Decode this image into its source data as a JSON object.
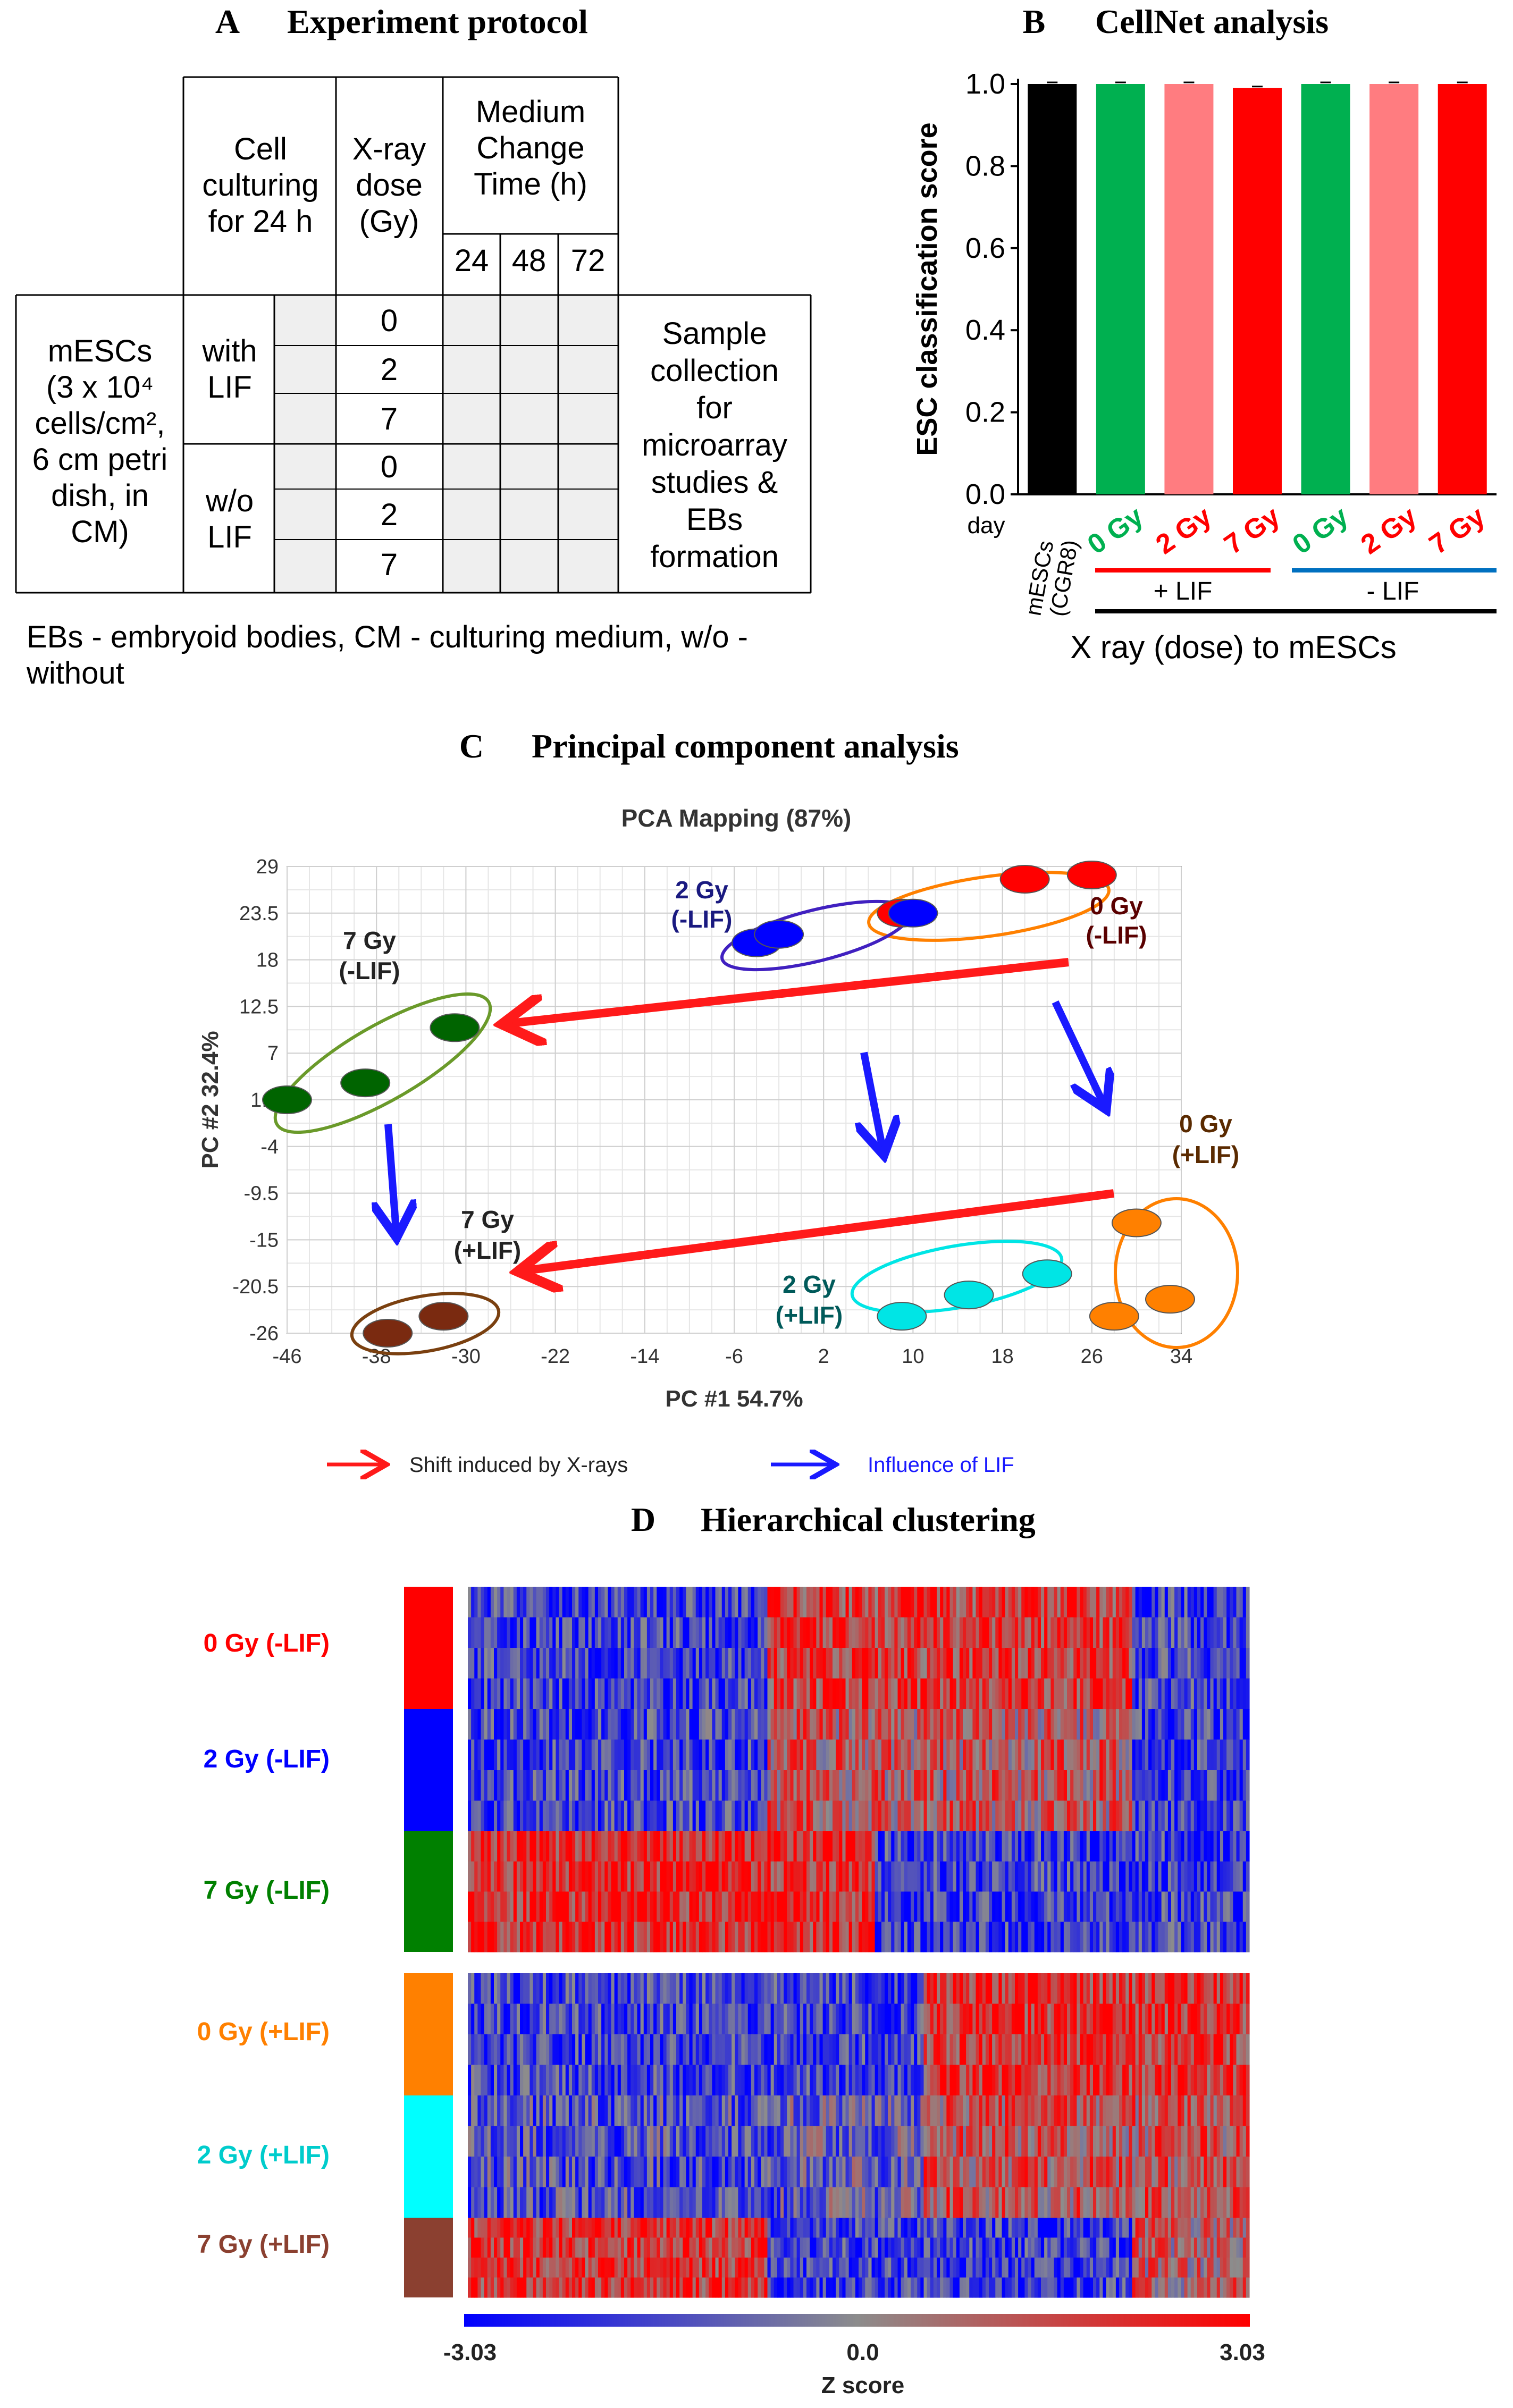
{
  "panel_a": {
    "letter": "A",
    "title": "Experiment protocol",
    "col_culture": [
      "Cell",
      "culturing",
      "for 24 h"
    ],
    "col_dose": [
      "X-ray",
      "dose",
      "(Gy)"
    ],
    "col_medium": [
      "Medium",
      "Change",
      "Time (h)"
    ],
    "times": [
      "24",
      "48",
      "72"
    ],
    "row_label": [
      "mESCs",
      "(3 x 10⁴",
      "cells/cm²,",
      "6 cm petri",
      "dish, in",
      "CM)"
    ],
    "with_lif": [
      "with",
      "LIF"
    ],
    "wo_lif": [
      "w/o",
      "LIF"
    ],
    "doses": [
      "0",
      "2",
      "7",
      "0",
      "2",
      "7"
    ],
    "sample_collection": [
      "Sample",
      "collection",
      "for",
      "microarray",
      "studies &",
      "EBs",
      "formation"
    ],
    "footnote": [
      "EBs - embryoid bodies, CM - culturing medium, w/o -",
      "without"
    ]
  },
  "panel_b": {
    "letter": "B",
    "title": "CellNet analysis",
    "day_label": "day",
    "mesc_label": [
      "mESCs",
      "(CGR8)"
    ],
    "group_plus": "+ LIF",
    "group_minus": "- LIF",
    "xlabel": "X ray (dose) to mESCs",
    "colors": {
      "black": "#000000",
      "green": "#00b050",
      "pink": "#ff7c80",
      "red": "#ff0000",
      "blue_line": "#0070c0"
    }
  },
  "panel_c": {
    "letter": "C",
    "title": "Principal component analysis",
    "plot_title": "PCA Mapping (87%)",
    "labels": {
      "g2m": [
        "2 Gy",
        "(-LIF)"
      ],
      "g0m": [
        "0 Gy",
        "(-LIF)"
      ],
      "g7m": [
        "7 Gy",
        "(-LIF)"
      ],
      "g0p": [
        "0 Gy",
        "(+LIF)"
      ],
      "g7p": [
        "7 Gy",
        "(+LIF)"
      ],
      "g2p": [
        "2 Gy",
        "(+LIF)"
      ]
    },
    "legend_red": "Shift induced by X-rays",
    "legend_blue": "Influence of LIF"
  },
  "panel_d": {
    "letter": "D",
    "title": "Hierarchical clustering",
    "rows": [
      {
        "label": "0 Gy (-LIF)",
        "color": "#ff0000"
      },
      {
        "label": "2 Gy (-LIF)",
        "color": "#0000ff"
      },
      {
        "label": "7 Gy (-LIF)",
        "color": "#008000"
      },
      {
        "label": "0 Gy (+LIF)",
        "color": "#ff8000"
      },
      {
        "label": "2 Gy (+LIF)",
        "color": "#00ffff"
      },
      {
        "label": "7 Gy (+LIF)",
        "color": "#8b4030"
      }
    ],
    "scale_min": "-3.03",
    "scale_mid": "0.0",
    "scale_max": "3.03",
    "scale_label": "Z score"
  },
  "chart_data": [
    {
      "type": "bar",
      "title": "CellNet analysis",
      "ylabel": "ESC classification score",
      "xlabel": "X ray (dose) to mESCs",
      "ylim": [
        0,
        1.0
      ],
      "yticks": [
        "0.0",
        "0.2",
        "0.4",
        "0.6",
        "0.8",
        "1.0"
      ],
      "categories": [
        "mESCs (CGR8)",
        "0 Gy",
        "2 Gy",
        "7 Gy",
        "0 Gy",
        "2 Gy",
        "7 Gy"
      ],
      "groups": [
        "",
        "+ LIF",
        "+ LIF",
        "+ LIF",
        "- LIF",
        "- LIF",
        "- LIF"
      ],
      "values": [
        1.0,
        1.0,
        1.0,
        0.99,
        1.0,
        1.0,
        1.0
      ],
      "bar_colors": [
        "#000000",
        "#00b050",
        "#ff7c80",
        "#ff0000",
        "#00b050",
        "#ff7c80",
        "#ff0000"
      ]
    },
    {
      "type": "scatter",
      "title": "PCA Mapping (87%)",
      "xlabel": "PC #1 54.7%",
      "ylabel": "PC #2 32.4%",
      "xlim": [
        -46,
        34
      ],
      "ylim": [
        -26,
        29
      ],
      "xticks": [
        "-46",
        "-38",
        "-30",
        "-22",
        "-14",
        "-6",
        "2",
        "10",
        "18",
        "26",
        "34"
      ],
      "yticks": [
        "29",
        "23.5",
        "18",
        "12.5",
        "7",
        "1.5",
        "-4",
        "-9.5",
        "-15",
        "-20.5",
        "-26"
      ],
      "series": [
        {
          "name": "0 Gy (-LIF)",
          "color": "#ff0000",
          "points": [
            [
              9,
              23.5
            ],
            [
              20,
              27.5
            ],
            [
              26,
              28
            ]
          ]
        },
        {
          "name": "2 Gy (-LIF)",
          "color": "#0000ff",
          "points": [
            [
              -4,
              20
            ],
            [
              -2,
              21
            ],
            [
              10,
              23.5
            ]
          ]
        },
        {
          "name": "7 Gy (-LIF)",
          "color": "#006400",
          "points": [
            [
              -46,
              1.5
            ],
            [
              -39,
              3.5
            ],
            [
              -31,
              10
            ]
          ]
        },
        {
          "name": "0 Gy (+LIF)",
          "color": "#ff8000",
          "points": [
            [
              30,
              -13
            ],
            [
              28,
              -24
            ],
            [
              33,
              -22
            ]
          ]
        },
        {
          "name": "2 Gy (+LIF)",
          "color": "#00e5e5",
          "points": [
            [
              9,
              -24
            ],
            [
              15,
              -21.5
            ],
            [
              22,
              -19
            ]
          ]
        },
        {
          "name": "7 Gy (+LIF)",
          "color": "#7a2a10",
          "points": [
            [
              -37,
              -26
            ],
            [
              -32,
              -24
            ]
          ]
        }
      ]
    }
  ]
}
